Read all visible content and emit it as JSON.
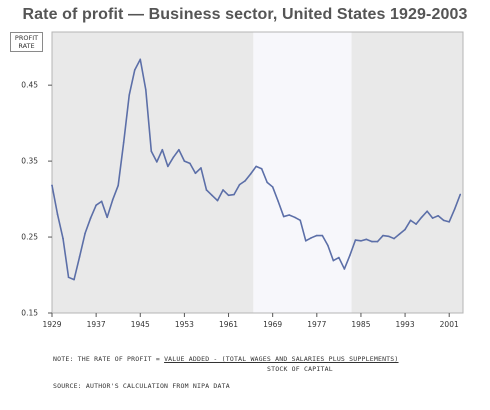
{
  "chart_data": {
    "type": "line",
    "title": "Rate of profit — Business sector, United States 1929-2003",
    "ylabel_lines": [
      "PROFIT",
      "RATE"
    ],
    "xlabel": "",
    "ylim": [
      0.15,
      0.52
    ],
    "xlim": [
      1929,
      2003.5
    ],
    "yticks": [
      "0.15",
      "0.25",
      "0.35",
      "0.45"
    ],
    "xticks": [
      "1929",
      "1937",
      "1945",
      "1953",
      "1961",
      "1969",
      "1977",
      "1985",
      "1993",
      "2001"
    ],
    "grid": false,
    "shaded_periods": [
      {
        "from": 1929,
        "to": 1965.5,
        "color": "#e9e9e9"
      },
      {
        "from": 1965.5,
        "to": 1983.3,
        "color": "#f7f7fb"
      },
      {
        "from": 1983.3,
        "to": 2003.5,
        "color": "#e9e9e9"
      }
    ],
    "line_color": "#5c6fa8",
    "series": [
      {
        "x": [
          1929,
          1930,
          1931,
          1932,
          1933,
          1934,
          1935,
          1936,
          1937,
          1938,
          1939,
          1940,
          1941,
          1942,
          1943,
          1944,
          1945,
          1946,
          1947,
          1948,
          1949,
          1950,
          1951,
          1952,
          1953,
          1954,
          1955,
          1956,
          1957,
          1958,
          1959,
          1960,
          1961,
          1962,
          1963,
          1964,
          1965,
          1966,
          1967,
          1968,
          1969,
          1970,
          1971,
          1972,
          1973,
          1974,
          1975,
          1976,
          1977,
          1978,
          1979,
          1980,
          1981,
          1982,
          1983,
          1984,
          1985,
          1986,
          1987,
          1988,
          1989,
          1990,
          1991,
          1992,
          1993,
          1994,
          1995,
          1996,
          1997,
          1998,
          1999,
          2000,
          2001,
          2002,
          2003
        ],
        "values": [
          0.318,
          0.28,
          0.248,
          0.197,
          0.194,
          0.224,
          0.255,
          0.275,
          0.292,
          0.297,
          0.276,
          0.299,
          0.318,
          0.375,
          0.437,
          0.47,
          0.484,
          0.444,
          0.363,
          0.349,
          0.365,
          0.343,
          0.355,
          0.365,
          0.35,
          0.347,
          0.334,
          0.341,
          0.312,
          0.305,
          0.298,
          0.312,
          0.305,
          0.306,
          0.319,
          0.324,
          0.333,
          0.343,
          0.34,
          0.322,
          0.316,
          0.297,
          0.277,
          0.279,
          0.276,
          0.272,
          0.245,
          0.249,
          0.252,
          0.252,
          0.239,
          0.219,
          0.223,
          0.208,
          0.226,
          0.246,
          0.245,
          0.247,
          0.244,
          0.244,
          0.252,
          0.251,
          0.248,
          0.254,
          0.26,
          0.272,
          0.267,
          0.276,
          0.284,
          0.275,
          0.278,
          0.272,
          0.27,
          0.287,
          0.306
        ]
      }
    ]
  },
  "footer": {
    "note_prefix": "NOTE: THE RATE OF PROFIT = ",
    "note_numerator": "VALUE ADDED - (TOTAL WAGES AND SALARIES PLUS SUPPLEMENTS)",
    "note_denominator": "STOCK OF CAPITAL",
    "source": "SOURCE: AUTHOR'S CALCULATION FROM NIPA DATA"
  }
}
